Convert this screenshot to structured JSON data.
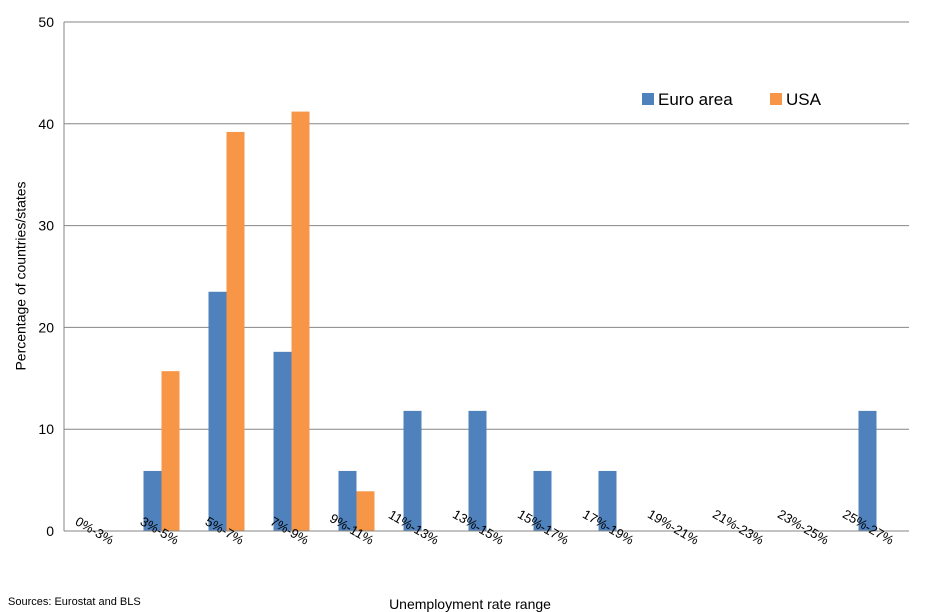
{
  "chart_data": {
    "type": "bar",
    "categories": [
      "0%-3%",
      "3%-5%",
      "5%-7%",
      "7%-9%",
      "9%-11%",
      "11%-13%",
      "13%-15%",
      "15%-17%",
      "17%-19%",
      "19%-21%",
      "21%-23%",
      "23%-25%",
      "25%-27%"
    ],
    "series": [
      {
        "name": "Euro area",
        "color": "#4f81bd",
        "values": [
          0,
          5.9,
          23.5,
          17.6,
          5.9,
          11.8,
          11.8,
          5.9,
          5.9,
          0,
          0,
          0,
          11.8
        ]
      },
      {
        "name": "USA",
        "color": "#f79646",
        "values": [
          0,
          15.7,
          39.2,
          41.2,
          3.9,
          0,
          0,
          0,
          0,
          0,
          0,
          0,
          0
        ]
      }
    ],
    "xlabel": "Unemployment rate  range",
    "ylabel": "Percentage of countries/states",
    "ylim": [
      0,
      50
    ],
    "yticks": [
      0,
      10,
      20,
      30,
      40,
      50
    ],
    "grid": true,
    "legend_position": "top-right"
  },
  "source_note": "Sources: Eurostat and BLS"
}
